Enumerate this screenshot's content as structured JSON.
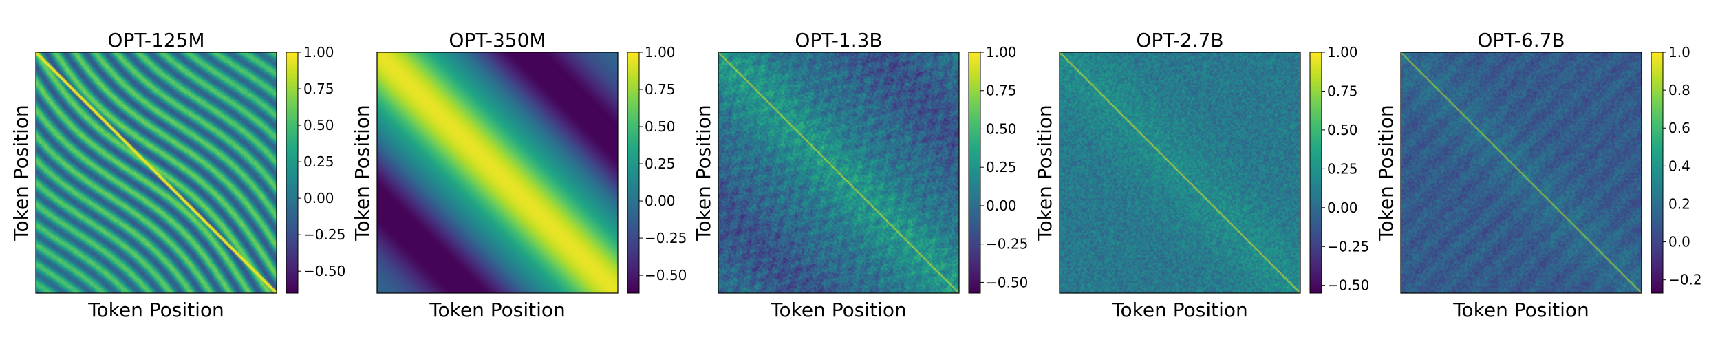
{
  "chart_data": [
    {
      "type": "heatmap",
      "title": "OPT-125M",
      "xlabel": "Token Position",
      "ylabel": "Token Position",
      "colormap": "viridis",
      "pattern": "diagonal-stripes",
      "colorbar": {
        "vmin": -0.65,
        "vmax": 1.0,
        "ticks": [
          1.0,
          0.75,
          0.5,
          0.25,
          0.0,
          -0.25,
          -0.5
        ],
        "tick_labels": [
          "1.00",
          "0.75",
          "0.50",
          "0.25",
          "0.00",
          "−0.25",
          "−0.50"
        ]
      }
    },
    {
      "type": "heatmap",
      "title": "OPT-350M",
      "xlabel": "Token Position",
      "ylabel": "Token Position",
      "colormap": "viridis",
      "pattern": "smooth-band",
      "colorbar": {
        "vmin": -0.62,
        "vmax": 1.0,
        "ticks": [
          1.0,
          0.75,
          0.5,
          0.25,
          0.0,
          -0.25,
          -0.5
        ],
        "tick_labels": [
          "1.00",
          "0.75",
          "0.50",
          "0.25",
          "0.00",
          "−0.25",
          "−0.50"
        ]
      }
    },
    {
      "type": "heatmap",
      "title": "OPT-1.3B",
      "xlabel": "Token Position",
      "ylabel": "Token Position",
      "colormap": "viridis",
      "pattern": "noisy-diagonal",
      "colorbar": {
        "vmin": -0.57,
        "vmax": 1.0,
        "ticks": [
          1.0,
          0.75,
          0.5,
          0.25,
          0.0,
          -0.25,
          -0.5
        ],
        "tick_labels": [
          "1.00",
          "0.75",
          "0.50",
          "0.25",
          "0.00",
          "−0.25",
          "−0.50"
        ]
      }
    },
    {
      "type": "heatmap",
      "title": "OPT-2.7B",
      "xlabel": "Token Position",
      "ylabel": "Token Position",
      "colormap": "viridis",
      "pattern": "noisy-flat",
      "colorbar": {
        "vmin": -0.55,
        "vmax": 1.0,
        "ticks": [
          1.0,
          0.75,
          0.5,
          0.25,
          0.0,
          -0.25,
          -0.5
        ],
        "tick_labels": [
          "1.00",
          "0.75",
          "0.50",
          "0.25",
          "0.00",
          "−0.25",
          "−0.50"
        ]
      }
    },
    {
      "type": "heatmap",
      "title": "OPT-6.7B",
      "xlabel": "Token Position",
      "ylabel": "Token Position",
      "colormap": "viridis",
      "pattern": "noisy-low",
      "colorbar": {
        "vmin": -0.27,
        "vmax": 1.0,
        "ticks": [
          1.0,
          0.8,
          0.6,
          0.4,
          0.2,
          0.0,
          -0.2
        ],
        "tick_labels": [
          "1.0",
          "0.8",
          "0.6",
          "0.4",
          "0.2",
          "0.0",
          "−0.2"
        ]
      }
    }
  ]
}
